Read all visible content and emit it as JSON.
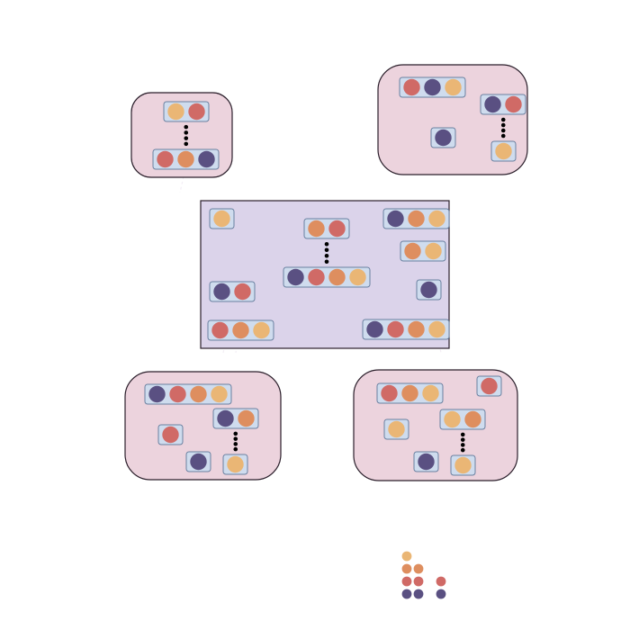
{
  "colors": {
    "background": "#ffffff",
    "group_fill": "#ecd3dd",
    "center_fill": "#dbd3ea",
    "chip_fill": "#cfdcee",
    "outline": "#2b1f2b",
    "chip_stroke": "#6a80a0",
    "dots": "#000000",
    "connector": "#f3eef6",
    "token": {
      "yellow": "#eab675",
      "orange": "#de8e5f",
      "red": "#d06a66",
      "purple": "#5a5082"
    }
  },
  "diagram": {
    "panels": [
      {
        "id": "top-left",
        "shape": "rounded",
        "chips": [
          {
            "tokens": [
              "yellow",
              "red"
            ]
          },
          {
            "tokens": [
              "red",
              "orange",
              "purple"
            ]
          }
        ],
        "links": [
          [
            0,
            1
          ]
        ]
      },
      {
        "id": "top-right",
        "shape": "rounded",
        "chips": [
          {
            "tokens": [
              "red",
              "purple",
              "yellow"
            ]
          },
          {
            "tokens": [
              "purple",
              "red"
            ]
          },
          {
            "tokens": [
              "purple"
            ]
          },
          {
            "tokens": [
              "yellow"
            ]
          }
        ],
        "links": [
          [
            1,
            3
          ]
        ]
      },
      {
        "id": "center",
        "shape": "rect",
        "chips": [
          {
            "tokens": [
              "yellow"
            ]
          },
          {
            "tokens": [
              "orange",
              "red"
            ]
          },
          {
            "tokens": [
              "purple",
              "orange",
              "yellow"
            ]
          },
          {
            "tokens": [
              "orange",
              "yellow"
            ]
          },
          {
            "tokens": [
              "purple",
              "red",
              "orange",
              "yellow"
            ]
          },
          {
            "tokens": [
              "purple",
              "red"
            ]
          },
          {
            "tokens": [
              "purple"
            ]
          },
          {
            "tokens": [
              "red",
              "orange",
              "yellow"
            ]
          },
          {
            "tokens": [
              "purple",
              "red",
              "orange",
              "yellow"
            ]
          }
        ],
        "links": [
          [
            1,
            4
          ]
        ]
      },
      {
        "id": "bottom-left",
        "shape": "rounded",
        "chips": [
          {
            "tokens": [
              "purple",
              "red",
              "orange",
              "yellow"
            ]
          },
          {
            "tokens": [
              "purple",
              "orange"
            ]
          },
          {
            "tokens": [
              "red"
            ]
          },
          {
            "tokens": [
              "purple"
            ]
          },
          {
            "tokens": [
              "yellow"
            ]
          }
        ],
        "links": [
          [
            1,
            4
          ]
        ]
      },
      {
        "id": "bottom-right",
        "shape": "rounded",
        "chips": [
          {
            "tokens": [
              "red",
              "orange",
              "yellow"
            ]
          },
          {
            "tokens": [
              "red"
            ]
          },
          {
            "tokens": [
              "yellow"
            ]
          },
          {
            "tokens": [
              "yellow",
              "orange"
            ]
          },
          {
            "tokens": [
              "purple"
            ]
          },
          {
            "tokens": [
              "yellow"
            ]
          }
        ],
        "links": [
          [
            3,
            5
          ]
        ]
      }
    ],
    "legend_stacks": [
      {
        "tokens": [
          "purple",
          "red",
          "orange",
          "yellow"
        ]
      },
      {
        "tokens": [
          "purple",
          "red",
          "orange"
        ]
      },
      {
        "tokens": [
          "purple",
          "red"
        ]
      }
    ]
  }
}
